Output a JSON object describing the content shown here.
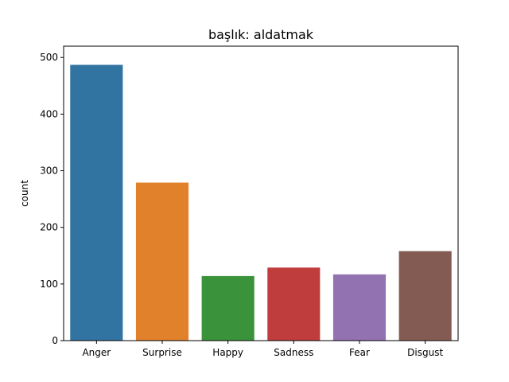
{
  "chart_data": {
    "type": "bar",
    "title": "başlık: aldatmak",
    "xlabel": "",
    "ylabel": "count",
    "categories": [
      "Anger",
      "Surprise",
      "Happy",
      "Sadness",
      "Fear",
      "Disgust"
    ],
    "values": [
      487,
      279,
      114,
      129,
      117,
      158
    ],
    "colors": [
      "#3274a1",
      "#e1812c",
      "#3a923a",
      "#c03d3e",
      "#9372b2",
      "#845b53"
    ],
    "ylim": [
      0,
      520
    ],
    "yticks": [
      0,
      100,
      200,
      300,
      400,
      500
    ],
    "grid": false,
    "legend": "none"
  }
}
